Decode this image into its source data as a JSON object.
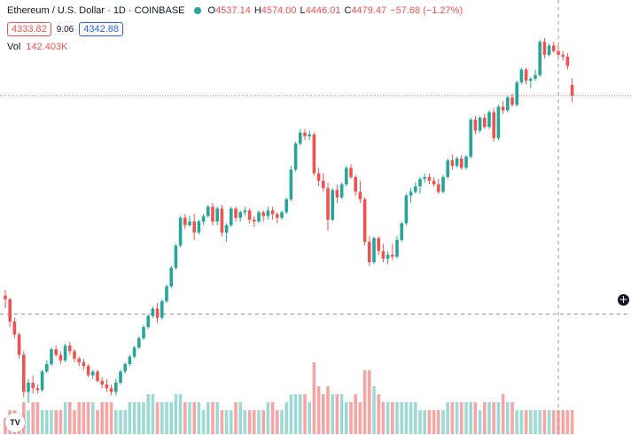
{
  "legend": {
    "symbol": "Ethereum / U.S. Dollar · 1D · COINBASE",
    "o_label": "O",
    "o": "4537.14",
    "h_label": "H",
    "h": "4574.00",
    "l_label": "L",
    "l": "4446.01",
    "c_label": "C",
    "c": "4479.47",
    "change": "−57.68 (−1.27%)",
    "bid": "4333.82",
    "spread": "9.06",
    "ask": "4342.88",
    "vol_label": "Vol",
    "vol": "142.403K"
  },
  "logo_text": "TV",
  "colors": {
    "up": "#26a69a",
    "down": "#ef5350",
    "up_vol": "#9fd9d3",
    "down_vol": "#f5a6a4"
  },
  "chart_data": {
    "type": "candlestick",
    "symbol": "ETHUSD",
    "timeframe": "1D",
    "ohlc_series": [
      [
        3400,
        3430,
        3330,
        3380
      ],
      [
        3380,
        3390,
        3230,
        3260
      ],
      [
        3260,
        3280,
        3170,
        3190
      ],
      [
        3190,
        3200,
        3060,
        3080
      ],
      [
        3080,
        3100,
        2850,
        2880
      ],
      [
        2880,
        2950,
        2820,
        2930
      ],
      [
        2930,
        2970,
        2870,
        2900
      ],
      [
        2900,
        2920,
        2870,
        2890
      ],
      [
        2890,
        3000,
        2880,
        2990
      ],
      [
        2990,
        3050,
        2980,
        3030
      ],
      [
        3030,
        3120,
        3020,
        3110
      ],
      [
        3110,
        3130,
        3070,
        3080
      ],
      [
        3080,
        3100,
        3030,
        3050
      ],
      [
        3050,
        3140,
        3040,
        3130
      ],
      [
        3130,
        3150,
        3080,
        3100
      ],
      [
        3100,
        3110,
        3040,
        3060
      ],
      [
        3060,
        3070,
        3020,
        3040
      ],
      [
        3040,
        3060,
        3000,
        3020
      ],
      [
        3020,
        3030,
        2960,
        2970
      ],
      [
        2970,
        3000,
        2950,
        2990
      ],
      [
        2990,
        3000,
        2930,
        2940
      ],
      [
        2940,
        2960,
        2900,
        2920
      ],
      [
        2920,
        2950,
        2880,
        2900
      ],
      [
        2900,
        2920,
        2860,
        2880
      ],
      [
        2880,
        2950,
        2860,
        2930
      ],
      [
        2930,
        3000,
        2920,
        2990
      ],
      [
        2990,
        3040,
        2980,
        3030
      ],
      [
        3030,
        3080,
        3020,
        3070
      ],
      [
        3070,
        3130,
        3060,
        3120
      ],
      [
        3120,
        3180,
        3110,
        3170
      ],
      [
        3170,
        3240,
        3160,
        3230
      ],
      [
        3230,
        3300,
        3220,
        3290
      ],
      [
        3290,
        3340,
        3280,
        3330
      ],
      [
        3330,
        3360,
        3250,
        3280
      ],
      [
        3280,
        3380,
        3270,
        3370
      ],
      [
        3370,
        3460,
        3360,
        3450
      ],
      [
        3450,
        3560,
        3440,
        3550
      ],
      [
        3550,
        3680,
        3540,
        3670
      ],
      [
        3670,
        3830,
        3660,
        3820
      ],
      [
        3820,
        3840,
        3760,
        3780
      ],
      [
        3780,
        3830,
        3770,
        3800
      ],
      [
        3800,
        3840,
        3700,
        3740
      ],
      [
        3740,
        3810,
        3730,
        3800
      ],
      [
        3800,
        3840,
        3780,
        3830
      ],
      [
        3830,
        3890,
        3820,
        3880
      ],
      [
        3880,
        3900,
        3780,
        3800
      ],
      [
        3800,
        3880,
        3780,
        3870
      ],
      [
        3870,
        3890,
        3720,
        3740
      ],
      [
        3740,
        3790,
        3690,
        3780
      ],
      [
        3780,
        3880,
        3770,
        3870
      ],
      [
        3870,
        3880,
        3800,
        3820
      ],
      [
        3820,
        3860,
        3800,
        3850
      ],
      [
        3850,
        3880,
        3830,
        3860
      ],
      [
        3860,
        3870,
        3790,
        3810
      ],
      [
        3810,
        3830,
        3770,
        3800
      ],
      [
        3800,
        3860,
        3790,
        3850
      ],
      [
        3850,
        3860,
        3800,
        3830
      ],
      [
        3830,
        3880,
        3810,
        3860
      ],
      [
        3860,
        3880,
        3810,
        3840
      ],
      [
        3840,
        3850,
        3790,
        3820
      ],
      [
        3820,
        3860,
        3810,
        3850
      ],
      [
        3850,
        3930,
        3840,
        3920
      ],
      [
        3920,
        4100,
        3910,
        4080
      ],
      [
        4080,
        4230,
        4070,
        4220
      ],
      [
        4220,
        4300,
        4210,
        4280
      ],
      [
        4280,
        4300,
        4240,
        4260
      ],
      [
        4260,
        4290,
        4240,
        4270
      ],
      [
        4270,
        4280,
        4050,
        4060
      ],
      [
        4060,
        4090,
        3990,
        4020
      ],
      [
        4020,
        4060,
        3960,
        3980
      ],
      [
        3980,
        4010,
        3750,
        3810
      ],
      [
        3810,
        3980,
        3800,
        3970
      ],
      [
        3970,
        4000,
        3900,
        3930
      ],
      [
        3930,
        4010,
        3920,
        4000
      ],
      [
        4000,
        4100,
        3990,
        4090
      ],
      [
        4090,
        4110,
        4030,
        4040
      ],
      [
        4040,
        4050,
        3940,
        3960
      ],
      [
        3960,
        4020,
        3900,
        3920
      ],
      [
        3920,
        3930,
        3670,
        3690
      ],
      [
        3690,
        3720,
        3560,
        3580
      ],
      [
        3580,
        3720,
        3570,
        3710
      ],
      [
        3710,
        3720,
        3620,
        3640
      ],
      [
        3640,
        3680,
        3580,
        3600
      ],
      [
        3600,
        3640,
        3570,
        3620
      ],
      [
        3620,
        3680,
        3590,
        3610
      ],
      [
        3610,
        3720,
        3600,
        3700
      ],
      [
        3700,
        3800,
        3690,
        3790
      ],
      [
        3790,
        3950,
        3780,
        3940
      ],
      [
        3940,
        3980,
        3900,
        3960
      ],
      [
        3960,
        4010,
        3950,
        3990
      ],
      [
        3990,
        4040,
        3950,
        4030
      ],
      [
        4030,
        4060,
        4010,
        4040
      ],
      [
        4040,
        4060,
        4000,
        4020
      ],
      [
        4020,
        4040,
        3990,
        4000
      ],
      [
        4000,
        4030,
        3950,
        3960
      ],
      [
        3960,
        4050,
        3950,
        4040
      ],
      [
        4040,
        4140,
        4030,
        4130
      ],
      [
        4130,
        4160,
        4080,
        4100
      ],
      [
        4100,
        4150,
        4090,
        4140
      ],
      [
        4140,
        4160,
        4080,
        4090
      ],
      [
        4090,
        4160,
        4080,
        4150
      ],
      [
        4150,
        4360,
        4140,
        4350
      ],
      [
        4350,
        4370,
        4270,
        4290
      ],
      [
        4290,
        4370,
        4280,
        4360
      ],
      [
        4360,
        4380,
        4300,
        4310
      ],
      [
        4310,
        4400,
        4300,
        4390
      ],
      [
        4390,
        4410,
        4230,
        4250
      ],
      [
        4250,
        4430,
        4240,
        4420
      ],
      [
        4420,
        4450,
        4380,
        4400
      ],
      [
        4400,
        4480,
        4390,
        4470
      ],
      [
        4470,
        4490,
        4420,
        4430
      ],
      [
        4430,
        4560,
        4420,
        4550
      ],
      [
        4550,
        4630,
        4540,
        4620
      ],
      [
        4620,
        4630,
        4540,
        4560
      ],
      [
        4560,
        4580,
        4520,
        4570
      ],
      [
        4570,
        4620,
        4560,
        4590
      ],
      [
        4590,
        4780,
        4580,
        4770
      ],
      [
        4770,
        4790,
        4680,
        4700
      ],
      [
        4700,
        4760,
        4690,
        4750
      ],
      [
        4750,
        4770,
        4710,
        4720
      ],
      [
        4720,
        4750,
        4690,
        4700
      ],
      [
        4700,
        4720,
        4670,
        4690
      ],
      [
        4690,
        4710,
        4620,
        4640
      ],
      [
        4537.14,
        4574.0,
        4446.01,
        4479.47
      ]
    ],
    "volume_series": [
      2,
      3,
      3,
      2,
      4,
      3,
      4,
      4,
      3,
      3,
      3,
      3,
      3,
      4,
      4,
      3,
      4,
      4,
      4,
      4,
      3,
      4,
      4,
      4,
      3,
      3,
      3,
      4,
      4,
      4,
      4,
      5,
      5,
      4,
      4,
      4,
      4,
      5,
      5,
      4,
      4,
      4,
      4,
      3,
      4,
      4,
      4,
      3,
      3,
      3,
      4,
      4,
      3,
      3,
      3,
      3,
      3,
      4,
      4,
      3,
      3,
      4,
      5,
      5,
      5,
      5,
      4,
      9,
      6,
      5,
      6,
      5,
      5,
      5,
      4,
      4,
      5,
      4,
      8,
      8,
      6,
      5,
      4,
      4,
      4,
      4,
      4,
      4,
      4,
      4,
      3,
      3,
      3,
      3,
      3,
      3,
      4,
      4,
      4,
      4,
      4,
      4,
      4,
      3,
      4,
      4,
      4,
      4,
      5,
      4,
      4,
      3,
      3,
      3,
      3,
      3,
      3,
      3,
      3,
      3,
      3,
      3,
      3,
      3
    ],
    "last_price": 4479.47,
    "crosshair_price": 3300,
    "ylim": [
      2700,
      4900
    ]
  }
}
